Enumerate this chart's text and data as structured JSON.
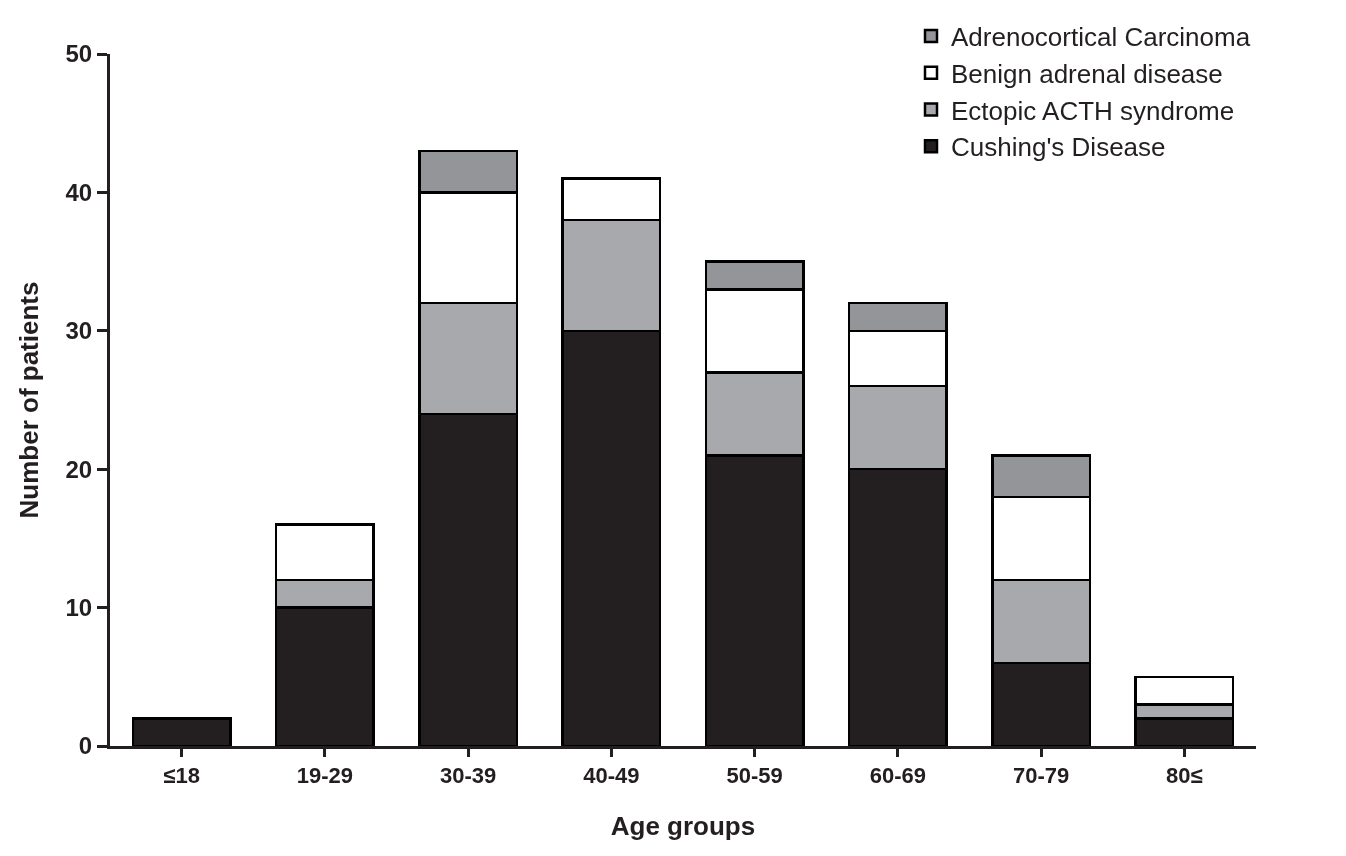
{
  "chart_data": {
    "type": "bar",
    "stacked": true,
    "xlabel": "Age groups",
    "ylabel": "Number of patients",
    "categories": [
      "≤18",
      "19-29",
      "30-39",
      "40-49",
      "50-59",
      "60-69",
      "70-79",
      "80≤"
    ],
    "series": [
      {
        "name": "Cushing's Disease",
        "color": "#231f20",
        "values": [
          2,
          10,
          24,
          30,
          21,
          20,
          6,
          2
        ]
      },
      {
        "name": "Ectopic ACTH syndrome",
        "color": "#a7a9ac",
        "values": [
          0,
          2,
          8,
          8,
          6,
          6,
          6,
          1
        ]
      },
      {
        "name": "Benign adrenal disease",
        "color": "#ffffff",
        "values": [
          0,
          4,
          8,
          3,
          6,
          4,
          6,
          2
        ]
      },
      {
        "name": "Adrenocortical Carcinoma",
        "color": "#939598",
        "values": [
          0,
          0,
          3,
          0,
          2,
          2,
          3,
          0
        ]
      }
    ],
    "ylim": [
      0,
      50
    ],
    "yticks": [
      0,
      10,
      20,
      30,
      40,
      50
    ],
    "legend": "top right"
  }
}
